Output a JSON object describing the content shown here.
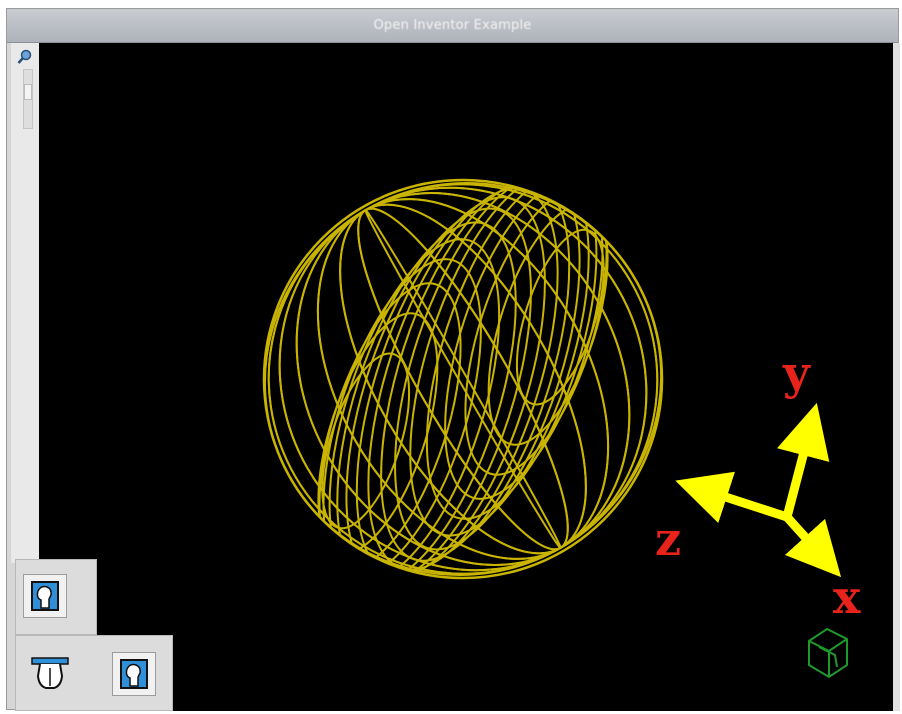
{
  "window": {
    "title": "Open Inventor Example"
  },
  "viewer": {
    "background": "#000000",
    "wireframe_color": "#c9b400",
    "axes": {
      "arrow_color": "#ffff00",
      "label_color": "#e8231c",
      "x_label": "x",
      "y_label": "y",
      "z_label": "z"
    },
    "nav_cube_color": "#1f9a2a"
  },
  "toolbar": {
    "buttons": [
      "view-mode-icon",
      "pick-mode-icon",
      "select-mode-icon"
    ]
  }
}
